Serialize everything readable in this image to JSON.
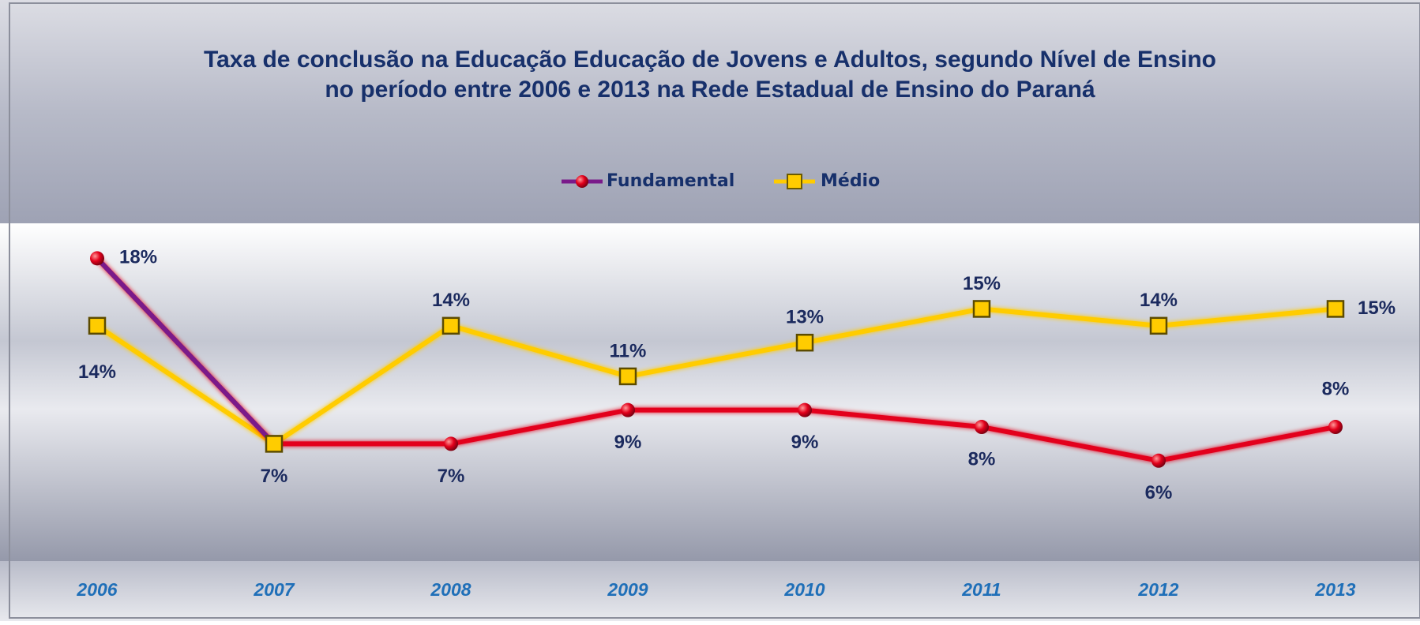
{
  "chart_data": {
    "type": "line",
    "title": "Taxa de conclusão na Educação Educação de Jovens e Adultos,  segundo Nível de Ensino",
    "subtitle": "no período entre 2006 e 2013  na Rede Estadual de Ensino do Paraná",
    "categories": [
      "2006",
      "2007",
      "2008",
      "2009",
      "2010",
      "2011",
      "2012",
      "2013"
    ],
    "series": [
      {
        "name": "Fundamental",
        "color": "#e3001b",
        "values": [
          18,
          7,
          7,
          9,
          9,
          8,
          6,
          8
        ],
        "value_labels": [
          "18%",
          "7%",
          "7%",
          "9%",
          "9%",
          "8%",
          "6%",
          "8%"
        ]
      },
      {
        "name": "Médio",
        "color": "#ffcc00",
        "values": [
          14,
          7,
          14,
          11,
          13,
          15,
          14,
          15
        ],
        "value_labels": [
          "14%",
          null,
          "14%",
          "11%",
          "13%",
          "15%",
          "14%",
          "15%"
        ]
      }
    ],
    "legend": "top"
  }
}
